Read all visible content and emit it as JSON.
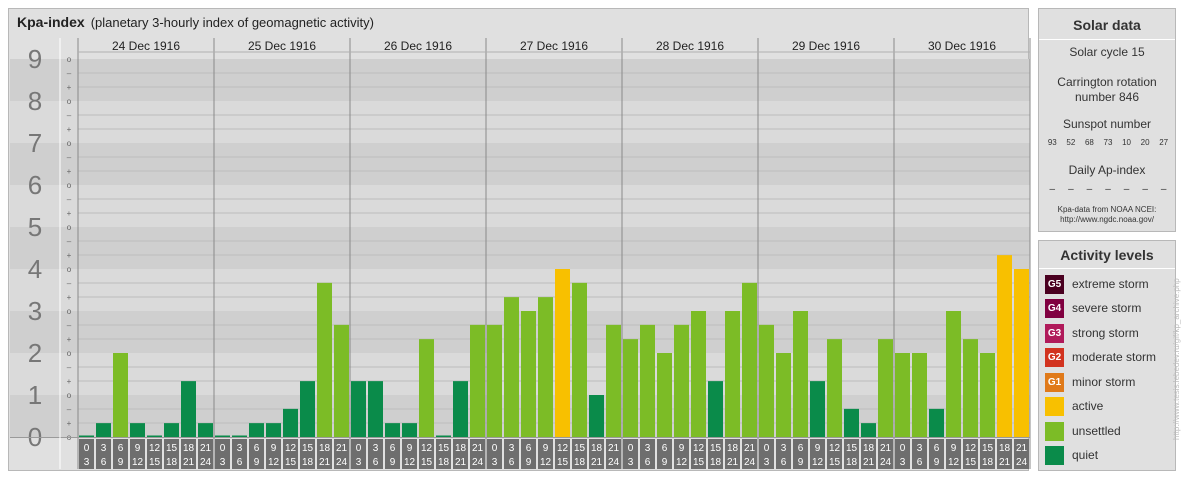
{
  "title": {
    "main": "Kpa-index",
    "subtitle": "(planetary 3-hourly index of geomagnetic activity)"
  },
  "chart_data": {
    "type": "bar",
    "title": "Kpa-index",
    "subtitle": "(planetary 3-hourly index of geomagnetic activity)",
    "ylim": [
      0,
      9
    ],
    "y_ticks": [
      "0",
      "1",
      "2",
      "3",
      "4",
      "5",
      "6",
      "7",
      "8",
      "9"
    ],
    "sub_ticks": [
      "o",
      "+",
      "–"
    ],
    "days": [
      "24 Dec 1916",
      "25 Dec 1916",
      "26 Dec 1916",
      "27 Dec 1916",
      "28 Dec 1916",
      "29 Dec 1916",
      "30 Dec 1916"
    ],
    "interval_starts": [
      "0",
      "3",
      "6",
      "9",
      "12",
      "15",
      "18",
      "21"
    ],
    "interval_ends": [
      "3",
      "6",
      "9",
      "12",
      "15",
      "18",
      "21",
      "24"
    ],
    "values": [
      [
        0,
        0.33,
        2,
        0.33,
        0,
        0.33,
        1.33,
        0.33
      ],
      [
        0,
        0,
        0.33,
        0.33,
        0.67,
        1.33,
        3.67,
        2.67
      ],
      [
        1.33,
        1.33,
        0.33,
        0.33,
        2.33,
        0,
        1.33,
        2.67
      ],
      [
        2.67,
        3.33,
        3,
        3.33,
        4,
        3.67,
        1,
        2.67
      ],
      [
        2.33,
        2.67,
        2,
        2.67,
        3,
        1.33,
        3,
        3.67
      ],
      [
        2.67,
        2,
        3,
        1.33,
        2.33,
        0.67,
        0.33,
        2.33
      ],
      [
        2,
        2,
        0.67,
        3,
        2.33,
        2,
        4.33,
        4
      ]
    ],
    "grid": true,
    "legend_position": "right"
  },
  "colors": {
    "quiet": "#0a8b4a",
    "unsettled": "#7cbc26",
    "active": "#f8c000",
    "g1": "#e07a1a",
    "g2": "#d2331f",
    "g3": "#b01a5a",
    "g4": "#800040",
    "g5": "#4a0020",
    "band_dark": "#cfcfcf",
    "band_light": "#dadada"
  },
  "solar": {
    "heading": "Solar data",
    "cycle": "Solar cycle 15",
    "carrington_line1": "Carrington rotation",
    "carrington_line2": "number 846",
    "sunspot_label": "Sunspot number",
    "sunspots": [
      "93",
      "52",
      "68",
      "73",
      "10",
      "20",
      "27"
    ],
    "ap_label": "Daily Ap-index",
    "ap_values": [
      "–",
      "–",
      "–",
      "–",
      "–",
      "–",
      "–"
    ],
    "source_line1": "Kpa-data from NOAA NCEI:",
    "source_line2": "http://www.ngdc.noaa.gov/"
  },
  "activity": {
    "heading": "Activity levels",
    "levels": [
      {
        "code": "G5",
        "label": "extreme storm",
        "color": "#4a0020"
      },
      {
        "code": "G4",
        "label": "severe storm",
        "color": "#800040"
      },
      {
        "code": "G3",
        "label": "strong storm",
        "color": "#b01a5a"
      },
      {
        "code": "G2",
        "label": "moderate storm",
        "color": "#d2331f"
      },
      {
        "code": "G1",
        "label": "minor storm",
        "color": "#e07a1a"
      },
      {
        "code": "",
        "label": "active",
        "color": "#f8c000"
      },
      {
        "code": "",
        "label": "unsettled",
        "color": "#7cbc26"
      },
      {
        "code": "",
        "label": "quiet",
        "color": "#0a8b4a"
      }
    ]
  },
  "credit": "http://www.tesis.lebedev.ru/gif/kp_archive.php"
}
